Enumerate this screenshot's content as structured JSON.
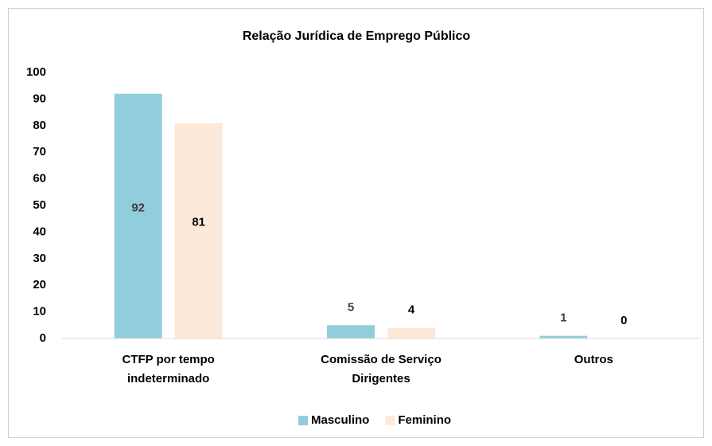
{
  "chart_data": {
    "type": "bar",
    "title": "Relação Jurídica de Emprego Público",
    "categories": [
      "CTFP por tempo indeterminado",
      "Comissão de Serviço Dirigentes",
      "Outros"
    ],
    "series": [
      {
        "name": "Masculino",
        "color": "#92cddc",
        "label_color": "#404040",
        "values": [
          92,
          5,
          1
        ]
      },
      {
        "name": "Feminino",
        "color": "#fde9d9",
        "label_color": "#000000",
        "values": [
          81,
          4,
          0
        ]
      }
    ],
    "ylim": [
      0,
      100
    ],
    "yticks": [
      0,
      10,
      20,
      30,
      40,
      50,
      60,
      70,
      80,
      90,
      100
    ],
    "grid": false,
    "legend": "bottom"
  }
}
